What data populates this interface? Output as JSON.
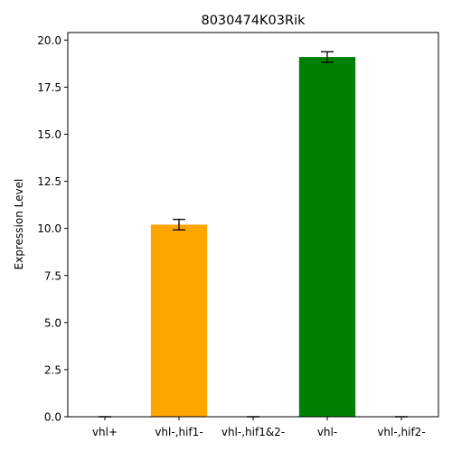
{
  "chart_data": {
    "type": "bar",
    "title": "8030474K03Rik",
    "xlabel": "",
    "ylabel": "Expression Level",
    "categories": [
      "vhl+",
      "vhl-,hif1-",
      "vhl-,hif1&2-",
      "vhl-",
      "vhl-,hif2-"
    ],
    "values": [
      0.0,
      10.2,
      0.0,
      19.1,
      0.0
    ],
    "errors": [
      0.0,
      0.28,
      0.0,
      0.28,
      0.0
    ],
    "colors": [
      "#1f77b4",
      "#ffa500",
      "#1f77b4",
      "#008000",
      "#1f77b4"
    ],
    "ylim": [
      0,
      20.4
    ],
    "yticks": [
      0.0,
      2.5,
      5.0,
      7.5,
      10.0,
      12.5,
      15.0,
      17.5,
      20.0
    ],
    "ytick_labels": [
      "0.0",
      "2.5",
      "5.0",
      "7.5",
      "10.0",
      "12.5",
      "15.0",
      "17.5",
      "20.0"
    ],
    "grid": false,
    "legend": "none"
  }
}
